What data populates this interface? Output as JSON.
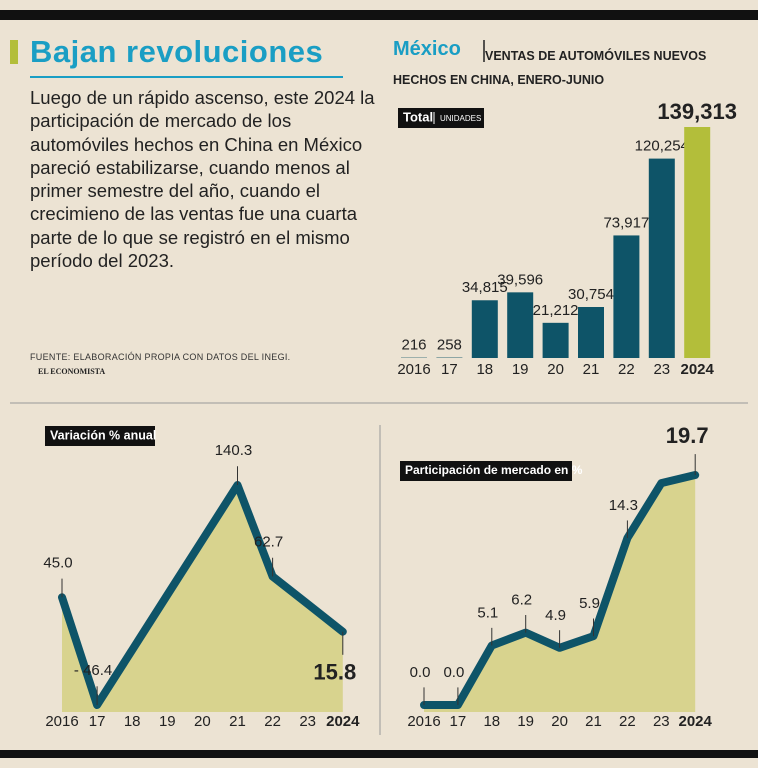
{
  "header": {
    "title": "Bajan revoluciones",
    "body": "Luego de un rápido ascenso, este 2024 la participación de mercado de los automóviles hechos en China en México pareció estabilizarse, cuando menos al primer semestre del año, cuando el crecimieno de las ventas fue una cuarta parte de lo que se registró en el mismo período del 2023.",
    "source": "FUENTE: ELABORACIÓN PROPIA CON DATOS DEL INEGI.",
    "brand": "EL ECONOMISTA"
  },
  "chart_data": [
    {
      "type": "bar",
      "title": "México",
      "subtitle": "VENTAS DE AUTOMÓVILES NUEVOS HECHOS EN CHINA, ENERO-JUNIO",
      "label": "Total",
      "unit": "UNIDADES",
      "categories": [
        "2016",
        "17",
        "18",
        "19",
        "20",
        "21",
        "22",
        "23",
        "2024"
      ],
      "values": [
        216,
        258,
        34815,
        39596,
        21212,
        30754,
        73917,
        120254,
        139313
      ],
      "value_labels": [
        "216",
        "258",
        "34,815",
        "39,596",
        "21,212",
        "30,754",
        "73,917",
        "120,254",
        "139,313"
      ],
      "colors": [
        "#0e5468",
        "#0e5468",
        "#0e5468",
        "#0e5468",
        "#0e5468",
        "#0e5468",
        "#0e5468",
        "#0e5468",
        "#b3be3a"
      ]
    },
    {
      "type": "area",
      "label": "Variación % anual",
      "categories": [
        "2016",
        "17",
        "18",
        "19",
        "20",
        "21",
        "22",
        "23",
        "2024"
      ],
      "values": [
        45.0,
        -46.4,
        0.3,
        47.0,
        93.6,
        140.3,
        62.7,
        39.3,
        15.8
      ],
      "value_labels": [
        "45.0",
        "- 46.4",
        null,
        null,
        null,
        "140.3",
        "62.7",
        null,
        "15.8"
      ],
      "color": "#0e5468",
      "fill": "#d8d38e"
    },
    {
      "type": "area",
      "label": "Participación de mercado en %",
      "categories": [
        "2016",
        "17",
        "18",
        "19",
        "20",
        "21",
        "22",
        "23",
        "2024"
      ],
      "values": [
        0.0,
        0.0,
        5.1,
        6.2,
        4.9,
        5.9,
        14.3,
        19.0,
        19.7
      ],
      "value_labels": [
        "0.0",
        "0.0",
        "5.1",
        "6.2",
        "4.9",
        "5.9",
        "14.3",
        null,
        "19.7"
      ],
      "color": "#0e5468",
      "fill": "#d8d38e"
    }
  ]
}
